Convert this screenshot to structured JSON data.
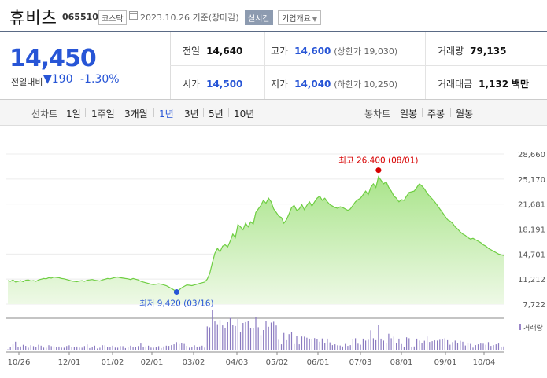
{
  "stock": {
    "name": "휴비츠",
    "code": "065510",
    "market": "코스닥",
    "date_text": "2023.10.26 기준(장마감)",
    "realtime": "실시간",
    "overview": "기업개요"
  },
  "price": {
    "current": "14,450",
    "change_label": "전일대비",
    "change_value": "▼190",
    "change_pct": "-1.30%"
  },
  "stats": {
    "prev": {
      "label": "전일",
      "value": "14,640"
    },
    "high": {
      "label": "고가",
      "value": "14,600",
      "sub": "(상한가 19,030)"
    },
    "volume": {
      "label": "거래량",
      "value": "79,135"
    },
    "open": {
      "label": "시가",
      "value": "14,500"
    },
    "low": {
      "label": "저가",
      "value": "14,040",
      "sub": "(하한가 10,250)"
    },
    "amount": {
      "label": "거래대금",
      "value": "1,132",
      "unit": "백만"
    }
  },
  "tabs": {
    "line_label": "선차트",
    "line_tabs": [
      "1일",
      "1주일",
      "3개월",
      "1년",
      "3년",
      "5년",
      "10년"
    ],
    "active": "1년",
    "candle_label": "봉차트",
    "candle_tabs": [
      "일봉",
      "주봉",
      "월봉"
    ]
  },
  "chart_data": {
    "type": "area",
    "y_ticks": [
      "28,660",
      "25,170",
      "21,681",
      "18,191",
      "14,701",
      "11,212",
      "7,722"
    ],
    "ylim": [
      7722,
      28660
    ],
    "x_ticks": [
      "10/26",
      "12/01",
      "01/02",
      "02/01",
      "03/02",
      "04/03",
      "05/02",
      "06/01",
      "07/03",
      "08/01",
      "09/01",
      "10/04"
    ],
    "max_annotation": "최고 26,400 (08/01)",
    "min_annotation": "최저 9,420 (03/16)",
    "volume_label": "거래량",
    "series": [
      {
        "values": [
          11000,
          10900,
          11100,
          10800,
          10900,
          11000,
          10850,
          11050,
          11100,
          10950,
          11000,
          10900,
          11100,
          11200,
          11300,
          11250,
          11400,
          11350,
          11500,
          11450,
          11400,
          11300,
          11250,
          11150,
          11050,
          10950,
          10900,
          10850,
          10950,
          11000,
          10900,
          11050,
          11100,
          11150,
          11050,
          11000,
          10950,
          11100,
          11200,
          11300,
          11250,
          11350,
          11450,
          11500,
          11400,
          11350,
          11300,
          11250,
          11150,
          11300,
          11200,
          11100,
          10900,
          10800,
          10700,
          10600,
          10500,
          10450,
          10500,
          10550,
          10500,
          10400,
          10300,
          10100,
          9900,
          9700,
          9420,
          9700,
          10000,
          10200,
          10400,
          10350,
          10300,
          10400,
          10500,
          10600,
          10700,
          10800,
          11200,
          12000,
          13500,
          14800,
          15500,
          15000,
          15800,
          16000,
          15700,
          16500,
          17500,
          17000,
          18800,
          18500,
          18100,
          19000,
          18500,
          19200,
          18900,
          20500,
          21000,
          21500,
          22200,
          21800,
          22500,
          22000,
          21000,
          20500,
          20000,
          19800,
          19000,
          19500,
          20300,
          21200,
          21500,
          20800,
          21000,
          21600,
          20900,
          21500,
          22000,
          21400,
          22000,
          22500,
          22800,
          22200,
          22500,
          22000,
          21600,
          21400,
          21200,
          21100,
          21300,
          21200,
          21000,
          20800,
          21000,
          21500,
          22000,
          22300,
          22500,
          23000,
          23500,
          23000,
          24000,
          24500,
          24000,
          25500,
          25000,
          24500,
          24800,
          24000,
          23500,
          22800,
          22500,
          22000,
          22300,
          22200,
          22800,
          23300,
          23400,
          23500,
          24000,
          24500,
          24200,
          23800,
          23200,
          22800,
          22400,
          22000,
          21500,
          21000,
          20500,
          20000,
          19500,
          19300,
          19000,
          18500,
          18200,
          17800,
          17500,
          17300,
          17000,
          16800,
          16900,
          16700,
          16500,
          16300,
          16000,
          15800,
          15500,
          15300,
          15100,
          14900,
          14700,
          14600,
          14500
        ]
      }
    ]
  }
}
